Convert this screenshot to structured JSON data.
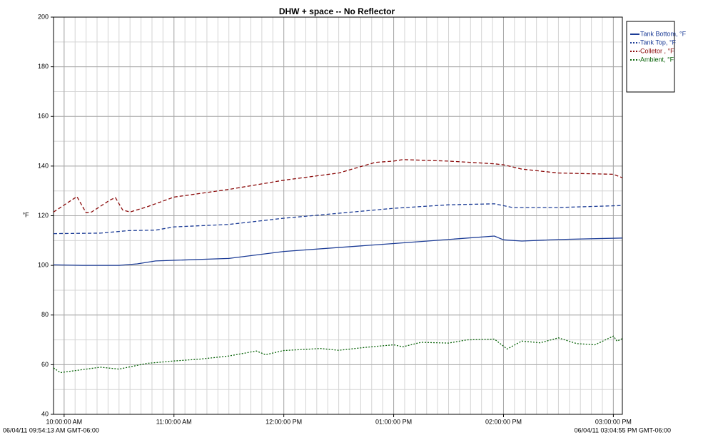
{
  "chart_data": {
    "type": "line",
    "title": "DHW + space -- No Reflector",
    "y_label": "°F",
    "ylim": [
      40,
      200
    ],
    "yticks": [
      40,
      60,
      80,
      100,
      120,
      140,
      160,
      180,
      200
    ],
    "y_minor_step": 10,
    "xlim": [
      {
        "value": "09:54:13",
        "label": "06/04/11 09:54:13 AM GMT-06:00"
      },
      {
        "value": "15:04:55",
        "label": "06/04/11 03:04:55 PM GMT-06:00"
      }
    ],
    "xticks": [
      {
        "value": "10:00:00",
        "label": "10:00:00 AM"
      },
      {
        "value": "11:00:00",
        "label": "11:00:00 AM"
      },
      {
        "value": "12:00:00",
        "label": "12:00:00 PM"
      },
      {
        "value": "13:00:00",
        "label": "01:00:00 PM"
      },
      {
        "value": "14:00:00",
        "label": "02:00:00 PM"
      },
      {
        "value": "15:00:00",
        "label": "03:00:00 PM"
      }
    ],
    "x_minor_step_minutes": 6,
    "grid": true,
    "legend": "top-right",
    "series": [
      {
        "name": "Tank Bottom, °F",
        "color": "#1c3c96",
        "dash": "solid",
        "x": [
          "09:54:13",
          "10:10:00",
          "10:30:00",
          "10:40:00",
          "10:50:00",
          "11:30:00",
          "12:00:00",
          "13:00:00",
          "13:55:00",
          "14:00:00",
          "14:10:00",
          "14:30:00",
          "15:04:55"
        ],
        "values": [
          100.2,
          100,
          100,
          100.6,
          101.8,
          102.8,
          105.6,
          108.8,
          111.8,
          110.3,
          109.8,
          110.4,
          111
        ]
      },
      {
        "name": "Tank Top, °F",
        "color": "#1c3c96",
        "dash": "dashed",
        "x": [
          "09:54:13",
          "10:20:00",
          "10:35:00",
          "10:50:00",
          "11:00:00",
          "11:30:00",
          "12:00:00",
          "13:00:00",
          "13:30:00",
          "13:55:00",
          "14:05:00",
          "14:30:00",
          "15:04:55"
        ],
        "values": [
          112.8,
          113,
          114,
          114.2,
          115.5,
          116.5,
          119,
          123,
          124.4,
          124.8,
          123.3,
          123.3,
          124.1
        ]
      },
      {
        "name": "Colletor , °F",
        "color": "#8b0a0a",
        "dash": "dashed",
        "x": [
          "09:54:13",
          "10:07:00",
          "10:12:00",
          "10:15:00",
          "10:25:00",
          "10:28:00",
          "10:32:00",
          "10:36:00",
          "10:45:00",
          "11:00:00",
          "11:30:00",
          "12:00:00",
          "12:30:00",
          "12:50:00",
          "13:00:00",
          "13:05:00",
          "13:30:00",
          "13:55:00",
          "14:00:00",
          "14:10:00",
          "14:30:00",
          "15:00:00",
          "15:04:55"
        ],
        "values": [
          121.5,
          127.7,
          121.2,
          121.5,
          126.3,
          127.3,
          122.3,
          121.5,
          123.5,
          127.5,
          130.6,
          134.3,
          137.2,
          141.5,
          142,
          142.6,
          142,
          140.9,
          140.5,
          138.8,
          137.2,
          136.7,
          135.3
        ]
      },
      {
        "name": "Ambient, °F",
        "color": "#0a640a",
        "dash": "dotted",
        "x": [
          "09:54:13",
          "09:58:00",
          "10:10:00",
          "10:20:00",
          "10:30:00",
          "10:45:00",
          "11:00:00",
          "11:15:00",
          "11:30:00",
          "11:45:00",
          "11:50:00",
          "12:00:00",
          "12:20:00",
          "12:30:00",
          "12:45:00",
          "13:00:00",
          "13:05:00",
          "13:15:00",
          "13:30:00",
          "13:40:00",
          "13:55:00",
          "14:02:00",
          "14:10:00",
          "14:20:00",
          "14:30:00",
          "14:40:00",
          "14:50:00",
          "15:00:00",
          "15:02:00",
          "15:04:55"
        ],
        "values": [
          58.7,
          56.8,
          58,
          59,
          58.2,
          60.5,
          61.5,
          62.3,
          63.5,
          65.5,
          64,
          65.7,
          66.5,
          65.8,
          67,
          68,
          67.2,
          69,
          68.7,
          70,
          70.3,
          66.3,
          69.5,
          68.8,
          70.8,
          68.5,
          68,
          71.5,
          69.5,
          70.5
        ]
      }
    ]
  }
}
